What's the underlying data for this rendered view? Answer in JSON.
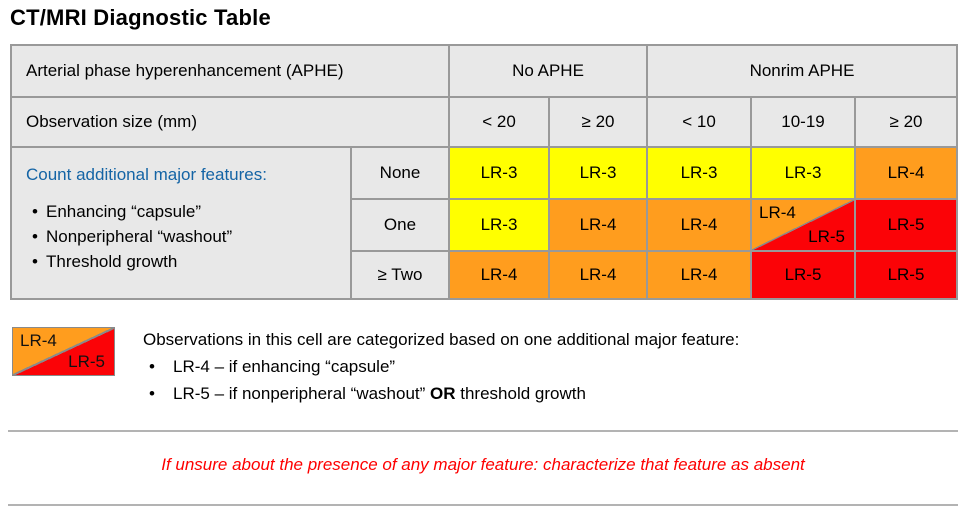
{
  "title": "CT/MRI Diagnostic Table",
  "palette": {
    "yellow": "#FFFF00",
    "orange": "#FF9D1E",
    "red": "#FB0307",
    "header_bg": "#E8E8E8",
    "border": "#999999",
    "blue": "#1464A5",
    "warning_red": "#FE0000"
  },
  "table": {
    "aphe_label": "Arterial phase hyperenhancement (APHE)",
    "aphe_groups": [
      {
        "label": "No APHE"
      },
      {
        "label": "Nonrim APHE"
      }
    ],
    "size_label": "Observation size (mm)",
    "size_columns": [
      "< 20",
      "≥ 20",
      "< 10",
      "10-19",
      "≥ 20"
    ],
    "features": {
      "heading": "Count additional major features:",
      "bullets": [
        "Enhancing “capsule”",
        "Nonperipheral “washout”",
        "Threshold growth"
      ]
    },
    "rows": [
      {
        "count": "None",
        "cells": [
          {
            "text": "LR-3",
            "color": "yellow"
          },
          {
            "text": "LR-3",
            "color": "yellow"
          },
          {
            "text": "LR-3",
            "color": "yellow"
          },
          {
            "text": "LR-3",
            "color": "yellow"
          },
          {
            "text": "LR-4",
            "color": "orange"
          }
        ]
      },
      {
        "count": "One",
        "cells": [
          {
            "text": "LR-3",
            "color": "yellow"
          },
          {
            "text": "LR-4",
            "color": "orange"
          },
          {
            "text": "LR-4",
            "color": "orange"
          },
          {
            "split": true,
            "top_left": "LR-4",
            "bottom_right": "LR-5"
          },
          {
            "text": "LR-5",
            "color": "red"
          }
        ]
      },
      {
        "count": "≥ Two",
        "cells": [
          {
            "text": "LR-4",
            "color": "orange"
          },
          {
            "text": "LR-4",
            "color": "orange"
          },
          {
            "text": "LR-4",
            "color": "orange"
          },
          {
            "text": "LR-5",
            "color": "red"
          },
          {
            "text": "LR-5",
            "color": "red"
          }
        ]
      }
    ]
  },
  "legend": {
    "swatch": {
      "top_left": "LR-4",
      "bottom_right": "LR-5"
    },
    "intro": "Observations in this cell are categorized based on one additional major feature:",
    "bullets": [
      {
        "pre": "LR-4 – if enhancing “capsule”",
        "bold": "",
        "post": ""
      },
      {
        "pre": "LR-5 – if nonperipheral “washout” ",
        "bold": "OR",
        "post": " threshold growth"
      }
    ]
  },
  "warning": "If unsure about the presence of any major feature: characterize that feature as absent"
}
